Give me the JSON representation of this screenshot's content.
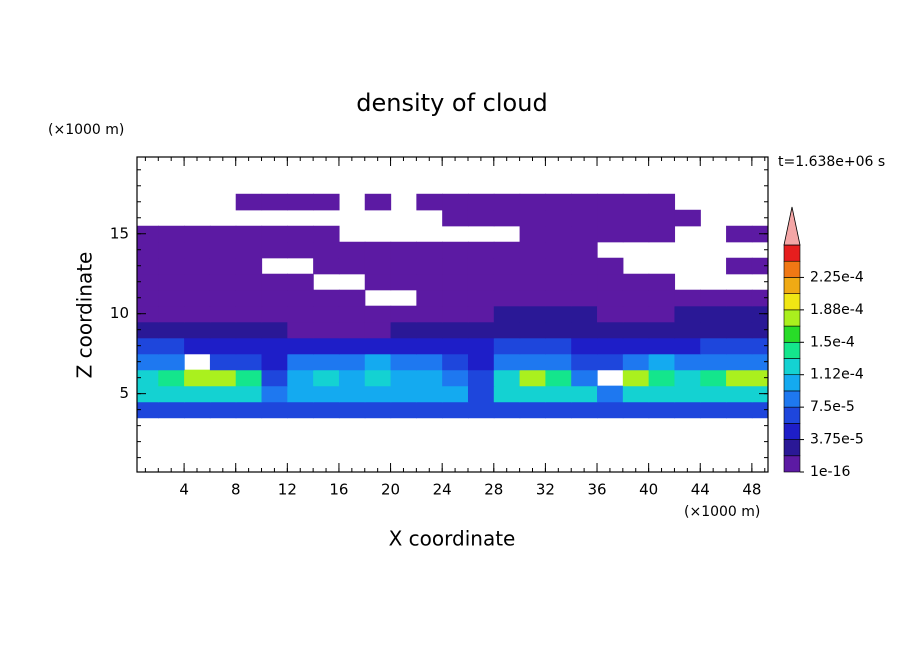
{
  "chart_data": {
    "type": "contour",
    "title": "density of cloud",
    "time_label": "t=1.638e+06 s",
    "x_label": "X coordinate",
    "y_label": "Z coordinate",
    "x_unit": "(×1000 m)",
    "y_unit": "(×1000 m)",
    "xlim": [
      0.35,
      49.25
    ],
    "ylim": [
      0.1,
      19.8
    ],
    "xticks": [
      4,
      8,
      12,
      16,
      20,
      24,
      28,
      32,
      36,
      40,
      44,
      48
    ],
    "yticks": [
      5,
      10,
      15
    ],
    "xminor": 1,
    "yminor": 1,
    "levels": [
      1e-16,
      1.875e-05,
      3.75e-05,
      5.625e-05,
      7.5e-05,
      9.375e-05,
      0.0001125,
      0.00013125,
      0.00015,
      0.00016875,
      0.0001875,
      0.00020625,
      0.000225,
      0.00024375,
      0.0002625
    ],
    "colors": [
      "#5c1aa3",
      "#2a1896",
      "#1e1ec8",
      "#1e46dc",
      "#1e78f0",
      "#14aaf0",
      "#14d2d2",
      "#14e68c",
      "#28dc28",
      "#aaf01e",
      "#f0e614",
      "#f0aa14",
      "#f07814",
      "#e61e1e"
    ],
    "extend_color": "#f4a6a6",
    "colorbar_ticks": [
      1e-16,
      {
        "value": 3.75e-05,
        "label": "3.75e-5"
      },
      {
        "value": 7.5e-05,
        "label": "7.5e-5"
      },
      {
        "value": 0.0001125,
        "label": "1.12e-4"
      },
      {
        "value": 0.00015,
        "label": "1.5e-4"
      },
      {
        "value": 0.0001875,
        "label": "1.88e-4"
      },
      {
        "value": 0.000225,
        "label": "2.25e-4"
      }
    ],
    "x": [
      1,
      3,
      5,
      7,
      9,
      11,
      13,
      15,
      17,
      19,
      21,
      23,
      25,
      27,
      29,
      31,
      33,
      35,
      37,
      39,
      41,
      43,
      45,
      47,
      49
    ],
    "z": [
      4,
      5,
      6,
      7,
      8,
      9,
      10,
      11,
      12,
      13,
      14,
      15,
      16,
      17
    ],
    "values": [
      [
        6e-05,
        6e-05,
        6e-05,
        6e-05,
        6e-05,
        6e-05,
        6e-05,
        6e-05,
        6e-05,
        6e-05,
        6e-05,
        6e-05,
        6e-05,
        6e-05,
        6e-05,
        6e-05,
        6e-05,
        6e-05,
        6e-05,
        6e-05,
        6e-05,
        6e-05,
        6e-05,
        6e-05,
        6e-05
      ],
      [
        0.00012,
        0.00012,
        0.00012,
        0.00012,
        0.00012,
        8e-05,
        0.0001,
        0.0001,
        0.0001,
        0.0001,
        0.0001,
        0.0001,
        0.0001,
        6e-05,
        0.00012,
        0.00012,
        0.00012,
        0.00012,
        8e-05,
        0.00012,
        0.00012,
        0.00012,
        0.00012,
        0.00012,
        0.00012
      ],
      [
        0.00012,
        0.00014,
        0.00018,
        0.00018,
        0.00014,
        6e-05,
        0.0001,
        0.00012,
        0.0001,
        0.00012,
        0.0001,
        0.0001,
        8e-05,
        6e-05,
        0.00012,
        0.00018,
        0.00014,
        8e-05,
        null,
        0.00018,
        0.00014,
        0.00012,
        0.00014,
        0.00018,
        0.00018
      ],
      [
        8e-05,
        8e-05,
        null,
        6e-05,
        6e-05,
        4.5e-05,
        8e-05,
        8e-05,
        8e-05,
        0.0001,
        8e-05,
        8e-05,
        6e-05,
        4.5e-05,
        8e-05,
        8e-05,
        8e-05,
        6e-05,
        6e-05,
        8e-05,
        0.0001,
        8e-05,
        8e-05,
        8e-05,
        8e-05
      ],
      [
        6e-05,
        6e-05,
        4.5e-05,
        4.5e-05,
        4.5e-05,
        4.5e-05,
        4.5e-05,
        4.5e-05,
        4.5e-05,
        4.5e-05,
        4.5e-05,
        4.5e-05,
        4.5e-05,
        4.5e-05,
        6e-05,
        6e-05,
        6e-05,
        4.5e-05,
        4.5e-05,
        4.5e-05,
        4.5e-05,
        4.5e-05,
        6e-05,
        6e-05,
        6e-05
      ],
      [
        2.5e-05,
        2.5e-05,
        2.5e-05,
        2.5e-05,
        2.5e-05,
        2.5e-05,
        5e-06,
        5e-06,
        5e-06,
        5e-06,
        2.5e-05,
        2.5e-05,
        2.5e-05,
        2.5e-05,
        2.5e-05,
        2.5e-05,
        2.5e-05,
        2.5e-05,
        2.5e-05,
        2.5e-05,
        2.5e-05,
        2.5e-05,
        2.5e-05,
        2.5e-05,
        2.5e-05
      ],
      [
        5e-06,
        5e-06,
        5e-06,
        5e-06,
        5e-06,
        5e-06,
        5e-06,
        5e-06,
        5e-06,
        5e-06,
        5e-06,
        5e-06,
        5e-06,
        5e-06,
        2.5e-05,
        2.5e-05,
        2.5e-05,
        2.5e-05,
        5e-06,
        5e-06,
        5e-06,
        2.5e-05,
        2.5e-05,
        2.5e-05,
        2.5e-05
      ],
      [
        5e-06,
        5e-06,
        5e-06,
        5e-06,
        5e-06,
        5e-06,
        5e-06,
        5e-06,
        5e-06,
        null,
        null,
        5e-06,
        5e-06,
        5e-06,
        5e-06,
        5e-06,
        5e-06,
        5e-06,
        5e-06,
        5e-06,
        5e-06,
        5e-06,
        5e-06,
        5e-06,
        5e-06
      ],
      [
        5e-06,
        5e-06,
        5e-06,
        5e-06,
        5e-06,
        5e-06,
        5e-06,
        null,
        null,
        5e-06,
        5e-06,
        5e-06,
        5e-06,
        5e-06,
        5e-06,
        5e-06,
        5e-06,
        5e-06,
        5e-06,
        5e-06,
        5e-06,
        null,
        null,
        null,
        null
      ],
      [
        5e-06,
        5e-06,
        5e-06,
        5e-06,
        5e-06,
        null,
        null,
        5e-06,
        5e-06,
        5e-06,
        5e-06,
        5e-06,
        5e-06,
        5e-06,
        5e-06,
        5e-06,
        5e-06,
        5e-06,
        5e-06,
        null,
        null,
        null,
        null,
        5e-06,
        5e-06
      ],
      [
        5e-06,
        5e-06,
        5e-06,
        5e-06,
        5e-06,
        5e-06,
        5e-06,
        5e-06,
        5e-06,
        5e-06,
        5e-06,
        5e-06,
        5e-06,
        5e-06,
        5e-06,
        5e-06,
        5e-06,
        5e-06,
        null,
        null,
        null,
        null,
        null,
        null,
        null
      ],
      [
        5e-06,
        5e-06,
        5e-06,
        5e-06,
        5e-06,
        5e-06,
        5e-06,
        5e-06,
        null,
        null,
        null,
        null,
        null,
        null,
        null,
        5e-06,
        5e-06,
        5e-06,
        5e-06,
        5e-06,
        5e-06,
        null,
        null,
        5e-06,
        5e-06
      ],
      [
        null,
        null,
        null,
        null,
        null,
        null,
        null,
        null,
        null,
        null,
        null,
        null,
        5e-06,
        5e-06,
        5e-06,
        5e-06,
        5e-06,
        5e-06,
        5e-06,
        5e-06,
        5e-06,
        5e-06,
        null,
        null,
        null
      ],
      [
        null,
        null,
        null,
        null,
        5e-06,
        5e-06,
        5e-06,
        5e-06,
        null,
        5e-06,
        null,
        5e-06,
        5e-06,
        5e-06,
        5e-06,
        5e-06,
        5e-06,
        5e-06,
        5e-06,
        5e-06,
        5e-06,
        null,
        null,
        null,
        null
      ]
    ]
  }
}
